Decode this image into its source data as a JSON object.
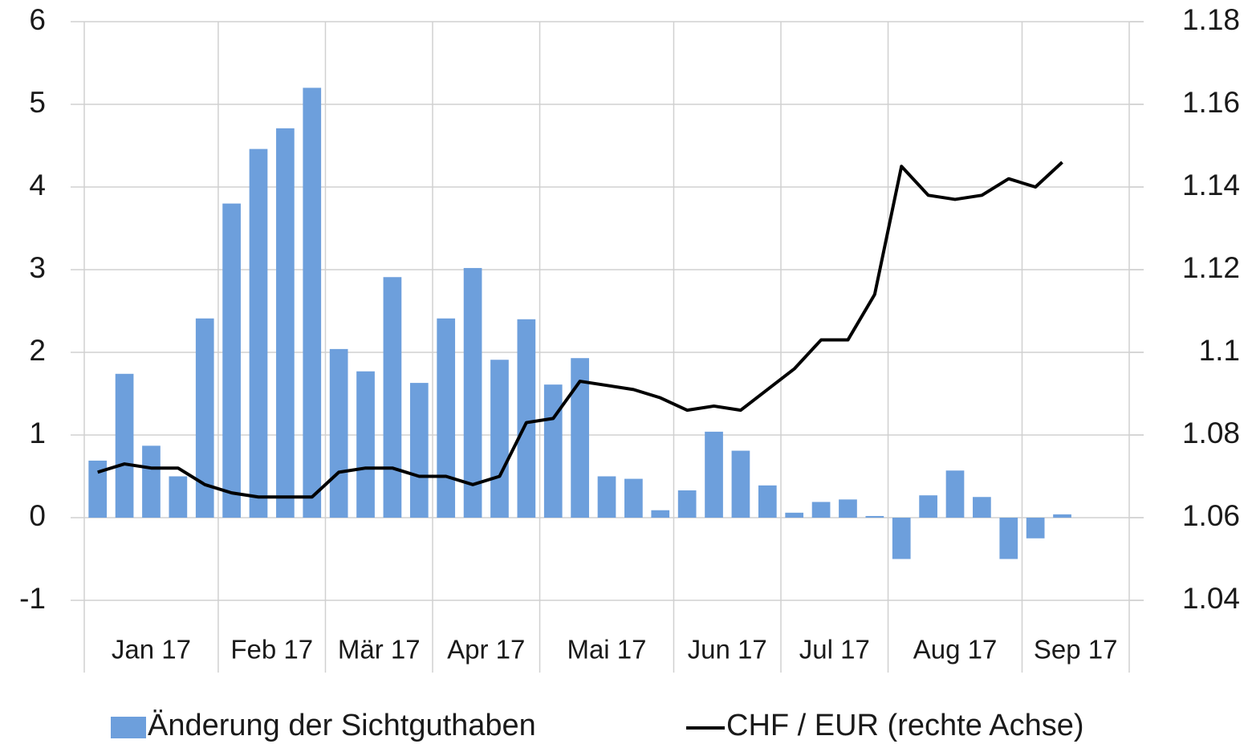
{
  "chart_data": {
    "type": "bar+line",
    "categories": [
      "Jan 17",
      null,
      null,
      null,
      null,
      "Feb 17",
      null,
      null,
      null,
      "Mär 17",
      null,
      null,
      null,
      "Apr 17",
      null,
      null,
      null,
      "Mai 17",
      null,
      null,
      null,
      null,
      "Jun 17",
      null,
      null,
      null,
      "Jul 17",
      null,
      null,
      null,
      "Aug 17",
      null,
      null,
      null,
      null,
      "Sep 17",
      null,
      null,
      null
    ],
    "series": [
      {
        "name": "Änderung der Sichtguthaben",
        "type": "bar",
        "color": "#6d9fdc",
        "values": [
          0.69,
          1.74,
          0.87,
          0.5,
          2.41,
          3.8,
          4.46,
          4.71,
          5.2,
          2.04,
          1.77,
          2.91,
          1.63,
          2.41,
          3.02,
          1.91,
          2.4,
          1.61,
          1.93,
          0.5,
          0.47,
          0.09,
          0.33,
          1.04,
          0.81,
          0.39,
          0.06,
          0.19,
          0.22,
          0.02,
          -0.5,
          0.27,
          0.57,
          0.25,
          -0.5,
          -0.25,
          0.04,
          null,
          null
        ]
      },
      {
        "name": "CHF / EUR (rechte Achse)",
        "type": "line",
        "axis": "y2",
        "color": "#000000",
        "values": [
          1.071,
          1.073,
          1.072,
          1.072,
          1.068,
          1.066,
          1.065,
          1.065,
          1.065,
          1.071,
          1.072,
          1.072,
          1.07,
          1.07,
          1.068,
          1.07,
          1.083,
          1.084,
          1.093,
          1.092,
          1.091,
          1.089,
          1.086,
          1.087,
          1.086,
          1.091,
          1.096,
          1.103,
          1.103,
          1.114,
          1.145,
          1.138,
          1.137,
          1.138,
          1.142,
          1.14,
          1.146,
          null,
          null
        ]
      }
    ],
    "ylim": [
      -1,
      6
    ],
    "yticks": [
      -1,
      0,
      1,
      2,
      3,
      4,
      5,
      6
    ],
    "y2lim": [
      1.04,
      1.18
    ],
    "y2ticks": [
      1.04,
      1.06,
      1.08,
      1.1,
      1.12,
      1.14,
      1.16,
      1.18
    ],
    "grid": true,
    "legend": "bottom"
  }
}
